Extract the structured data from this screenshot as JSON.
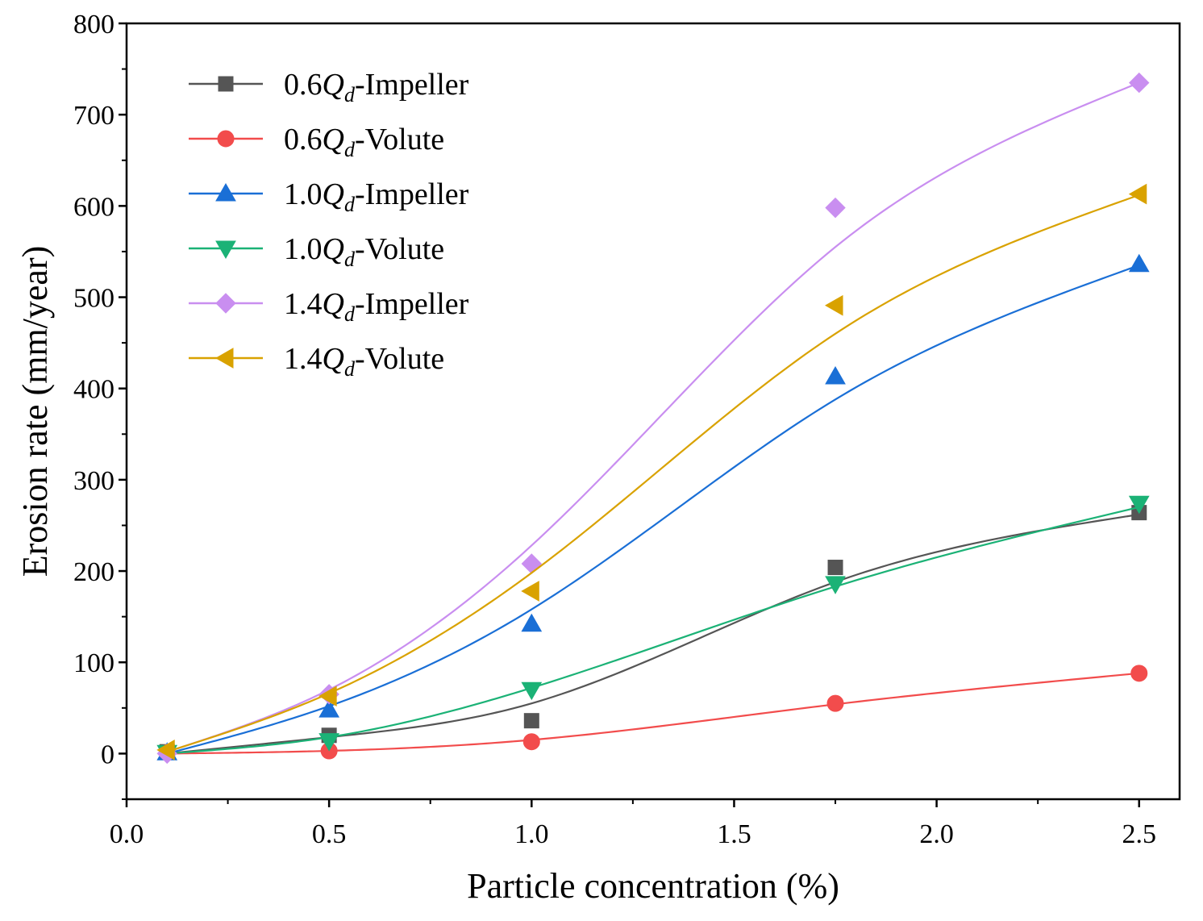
{
  "chart_data": {
    "type": "line",
    "title": "",
    "xlabel": "Particle concentration (%)",
    "ylabel": "Erosion rate (mm/year)",
    "xlim": [
      0.0,
      2.6
    ],
    "ylim": [
      -50,
      800
    ],
    "xticks": [
      0.0,
      0.5,
      1.0,
      1.5,
      2.0,
      2.5
    ],
    "xtick_labels": [
      "0.0",
      "0.5",
      "1.0",
      "1.5",
      "2.0",
      "2.5"
    ],
    "yticks": [
      0,
      100,
      200,
      300,
      400,
      500,
      600,
      700,
      800
    ],
    "ytick_labels": [
      "0",
      "100",
      "200",
      "300",
      "400",
      "500",
      "600",
      "700",
      "800"
    ],
    "grid": false,
    "legend_position": "top-left",
    "x": [
      0.1,
      0.5,
      1.0,
      1.75,
      2.5
    ],
    "series": [
      {
        "name": "0.6Qd-Impeller",
        "prefix": "0.6",
        "sub": "d",
        "suffix": "-Impeller",
        "color": "#555555",
        "marker": "square",
        "values": [
          2,
          20,
          36,
          204,
          264
        ],
        "fit": [
          0,
          18,
          55,
          188,
          262
        ]
      },
      {
        "name": "0.6Qd-Volute",
        "prefix": "0.6",
        "sub": "d",
        "suffix": "-Volute",
        "color": "#f24c4c",
        "marker": "circle",
        "values": [
          1,
          3,
          13,
          55,
          88
        ],
        "fit": [
          0,
          3,
          15,
          54,
          88
        ]
      },
      {
        "name": "1.0Qd-Impeller",
        "prefix": "1.0",
        "sub": "d",
        "suffix": "-Impeller",
        "color": "#1a6fd6",
        "marker": "triangle-up",
        "values": [
          1,
          48,
          142,
          413,
          536
        ],
        "fit": [
          0,
          52,
          158,
          388,
          535
        ]
      },
      {
        "name": "1.0Qd-Volute",
        "prefix": "1.0",
        "sub": "d",
        "suffix": "-Volute",
        "color": "#1bb276",
        "marker": "triangle-down",
        "values": [
          1,
          14,
          70,
          186,
          274
        ],
        "fit": [
          0,
          18,
          72,
          183,
          270
        ]
      },
      {
        "name": "1.4Qd-Impeller",
        "prefix": "1.4",
        "sub": "d",
        "suffix": "-Impeller",
        "color": "#c98ef0",
        "marker": "diamond",
        "values": [
          0,
          65,
          208,
          598,
          735
        ],
        "fit": [
          2,
          70,
          228,
          555,
          735
        ]
      },
      {
        "name": "1.4Qd-Volute",
        "prefix": "1.4",
        "sub": "d",
        "suffix": "-Volute",
        "color": "#d9a200",
        "marker": "triangle-left",
        "values": [
          4,
          63,
          178,
          491,
          613
        ],
        "fit": [
          2,
          66,
          198,
          460,
          612
        ]
      }
    ],
    "legend_symbol": "Q"
  }
}
